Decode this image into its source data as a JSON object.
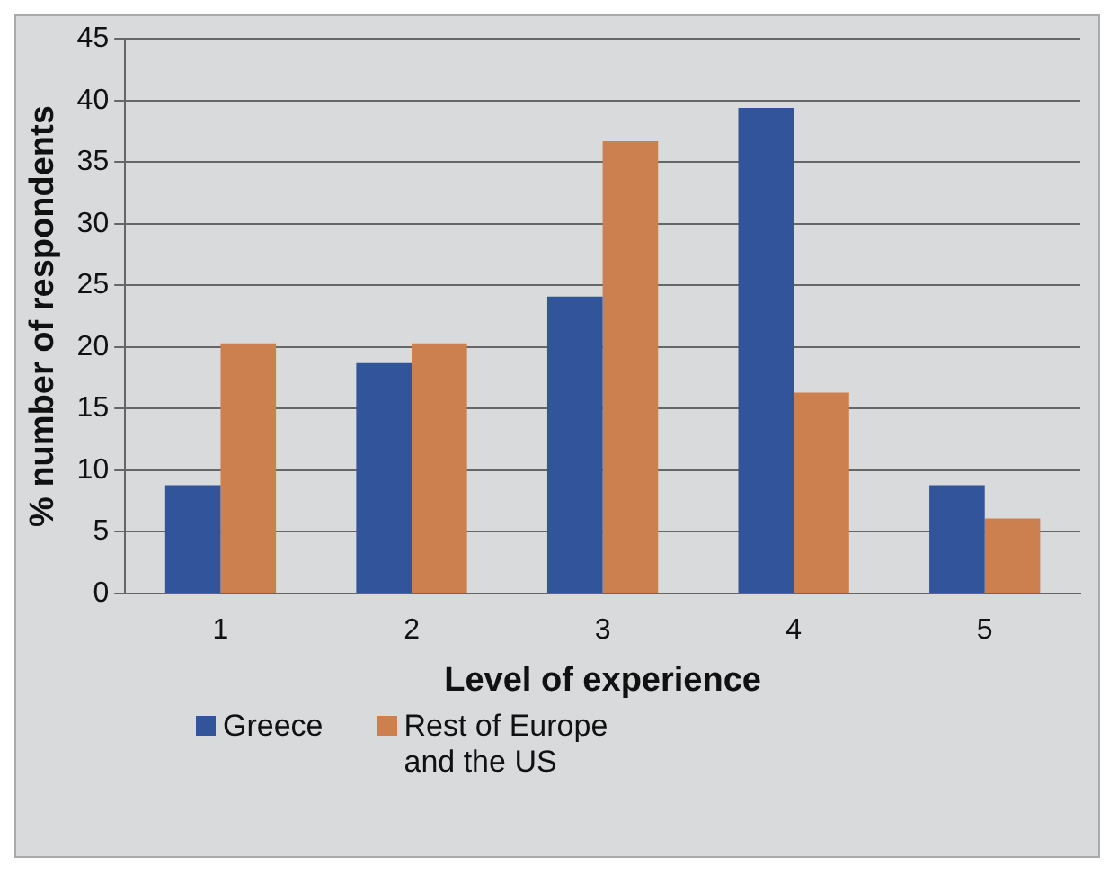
{
  "chart_data": {
    "type": "bar",
    "xlabel": "Level of experience",
    "ylabel": "% number of respondents",
    "categories": [
      "1",
      "2",
      "3",
      "4",
      "5"
    ],
    "series": [
      {
        "name": "Greece",
        "color": "#31549a",
        "values": [
          8.8,
          18.7,
          24.1,
          39.4,
          8.8
        ]
      },
      {
        "name": "Rest of Europe and the US",
        "color": "#cd804f",
        "values": [
          20.3,
          20.3,
          36.7,
          16.3,
          6.1
        ]
      }
    ],
    "ylim": [
      0,
      45
    ],
    "yticks": [
      0,
      5,
      10,
      15,
      20,
      25,
      30,
      35,
      40,
      45
    ],
    "grid": "y",
    "legend": "bottom"
  }
}
